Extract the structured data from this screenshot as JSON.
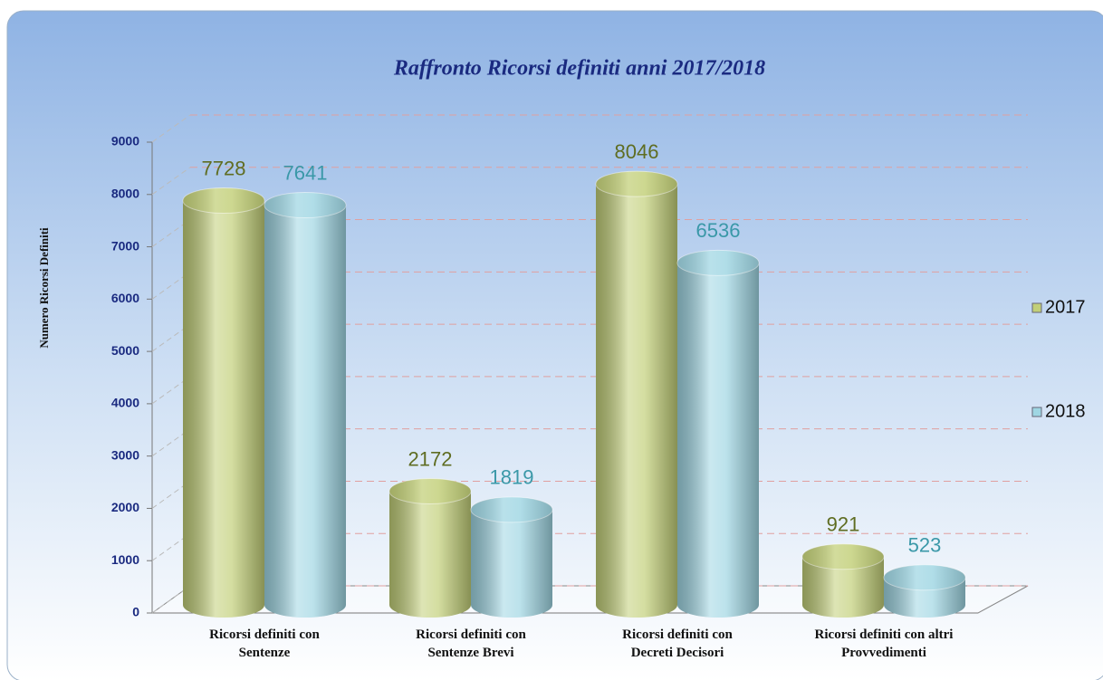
{
  "chart_data": {
    "type": "bar",
    "title": "Raffronto Ricorsi definiti anni 2017/2018",
    "y_label": "Numero Ricorsi Definiti",
    "categories": [
      "Ricorsi definiti con\nSentenze",
      "Ricorsi definiti con\nSentenze Brevi",
      "Ricorsi definiti con\nDecreti Decisori",
      "Ricorsi definiti con altri\nProvvedimenti"
    ],
    "series": [
      {
        "name": "2017",
        "color": "#c2cf78",
        "label_color": "#5f6d22",
        "values": [
          7728,
          2172,
          8046,
          921
        ]
      },
      {
        "name": "2018",
        "color": "#9fd6e3",
        "label_color": "#3a98a8",
        "values": [
          7641,
          1819,
          6536,
          523
        ]
      }
    ],
    "ylim": [
      0,
      9000
    ],
    "yticks": [
      0,
      1000,
      2000,
      3000,
      4000,
      5000,
      6000,
      7000,
      8000,
      9000
    ],
    "grid": true,
    "legend": "right"
  }
}
